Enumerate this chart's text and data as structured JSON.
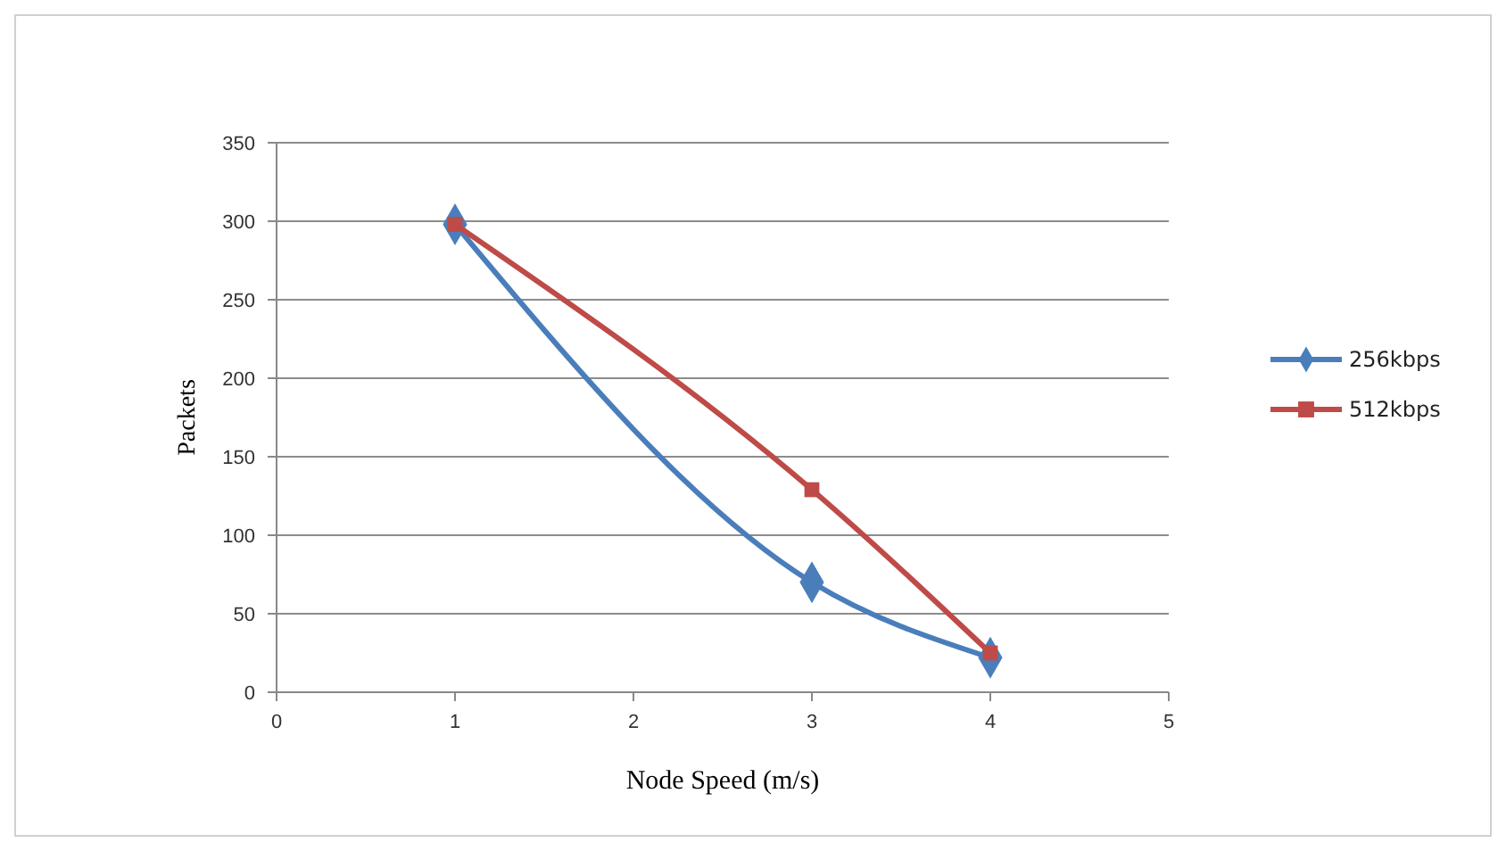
{
  "chart_data": {
    "type": "line",
    "xlabel": "Node Speed (m/s)",
    "ylabel": "Packets",
    "xlim": [
      0,
      5
    ],
    "xticks": [
      0,
      1,
      2,
      3,
      4,
      5
    ],
    "ylim": [
      0,
      350
    ],
    "yticks": [
      0,
      50,
      100,
      150,
      200,
      250,
      300,
      350
    ],
    "grid": "y",
    "legend": "right",
    "series": [
      {
        "name": "256kbps",
        "color": "#4a7ebb",
        "x": [
          1,
          3,
          4
        ],
        "values": [
          298,
          70,
          22
        ],
        "marker": "diamond"
      },
      {
        "name": "512kbps",
        "color": "#be4b48",
        "x": [
          1,
          3,
          4
        ],
        "values": [
          298,
          129,
          25
        ],
        "marker": "square"
      }
    ]
  }
}
